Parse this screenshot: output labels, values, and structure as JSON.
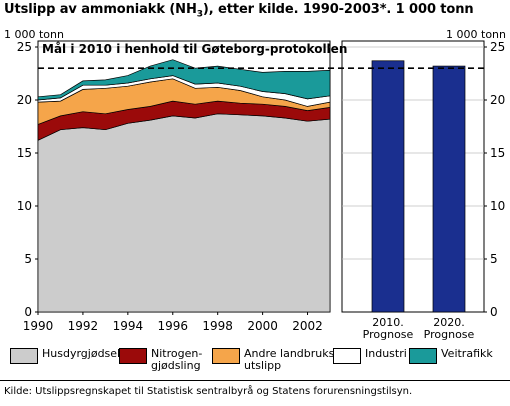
{
  "title_main": "Utslipp av ammoniakk (NH",
  "title_sub": "3",
  "title_rest": "), etter kilde. 1990-2003*. 1 000 tonn",
  "source_note": "Kilde: Utslippsregnskapet til Statistisk sentralbyrå og Statens forurensningstilsyn.",
  "colors": {
    "Husdyrgjødsel": "#cccccc",
    "Nitrogengjødsling": "#9b0a0a",
    "Andre landbruksutslipp": "#f5a54a",
    "Industri": "#ffffff",
    "Veitrafikk": "#1a9a9a",
    "prognose": "#1a2f8f"
  },
  "chart_data": [
    {
      "type": "area",
      "stacked": true,
      "yunit_left": "1 000 tonn",
      "yunit_right": "1 000 tonn",
      "ylim": [
        0,
        25
      ],
      "yticks": [
        0,
        5,
        10,
        15,
        20,
        25
      ],
      "x": [
        1990,
        1991,
        1992,
        1993,
        1994,
        1995,
        1996,
        1997,
        1998,
        1999,
        2000,
        2001,
        2002,
        2003
      ],
      "xticks": [
        "1990",
        "1992",
        "1994",
        "1996",
        "1998",
        "2000",
        "2002"
      ],
      "series": [
        {
          "name": "Husdyrgjødsel",
          "values": [
            16.2,
            17.2,
            17.4,
            17.2,
            17.8,
            18.1,
            18.5,
            18.3,
            18.7,
            18.6,
            18.5,
            18.3,
            18.0,
            18.2
          ]
        },
        {
          "name": "Nitrogen-\ngjødsling",
          "values": [
            1.5,
            1.3,
            1.5,
            1.5,
            1.3,
            1.3,
            1.4,
            1.3,
            1.2,
            1.1,
            1.1,
            1.1,
            1.0,
            1.1
          ]
        },
        {
          "name": "Andre landbruks-\nutslipp",
          "values": [
            2.1,
            1.4,
            2.1,
            2.4,
            2.2,
            2.3,
            2.1,
            1.5,
            1.3,
            1.2,
            0.7,
            0.6,
            0.4,
            0.5
          ]
        },
        {
          "name": "Industri",
          "values": [
            0.2,
            0.3,
            0.4,
            0.3,
            0.3,
            0.3,
            0.3,
            0.4,
            0.4,
            0.4,
            0.5,
            0.6,
            0.7,
            0.6
          ]
        },
        {
          "name": "Veitrafikk",
          "values": [
            0.3,
            0.3,
            0.4,
            0.5,
            0.7,
            1.2,
            1.5,
            1.5,
            1.6,
            1.6,
            1.8,
            2.1,
            2.6,
            2.4
          ]
        }
      ],
      "target_line": {
        "value": 23.0,
        "label": "Mål i 2010 i henhold til Gøteborg-protokollen"
      }
    },
    {
      "type": "bar",
      "categories": [
        "2010.\nPrognose",
        "2020.\nPrognose"
      ],
      "values": [
        23.7,
        23.2
      ],
      "ylim": [
        0,
        25
      ]
    }
  ]
}
